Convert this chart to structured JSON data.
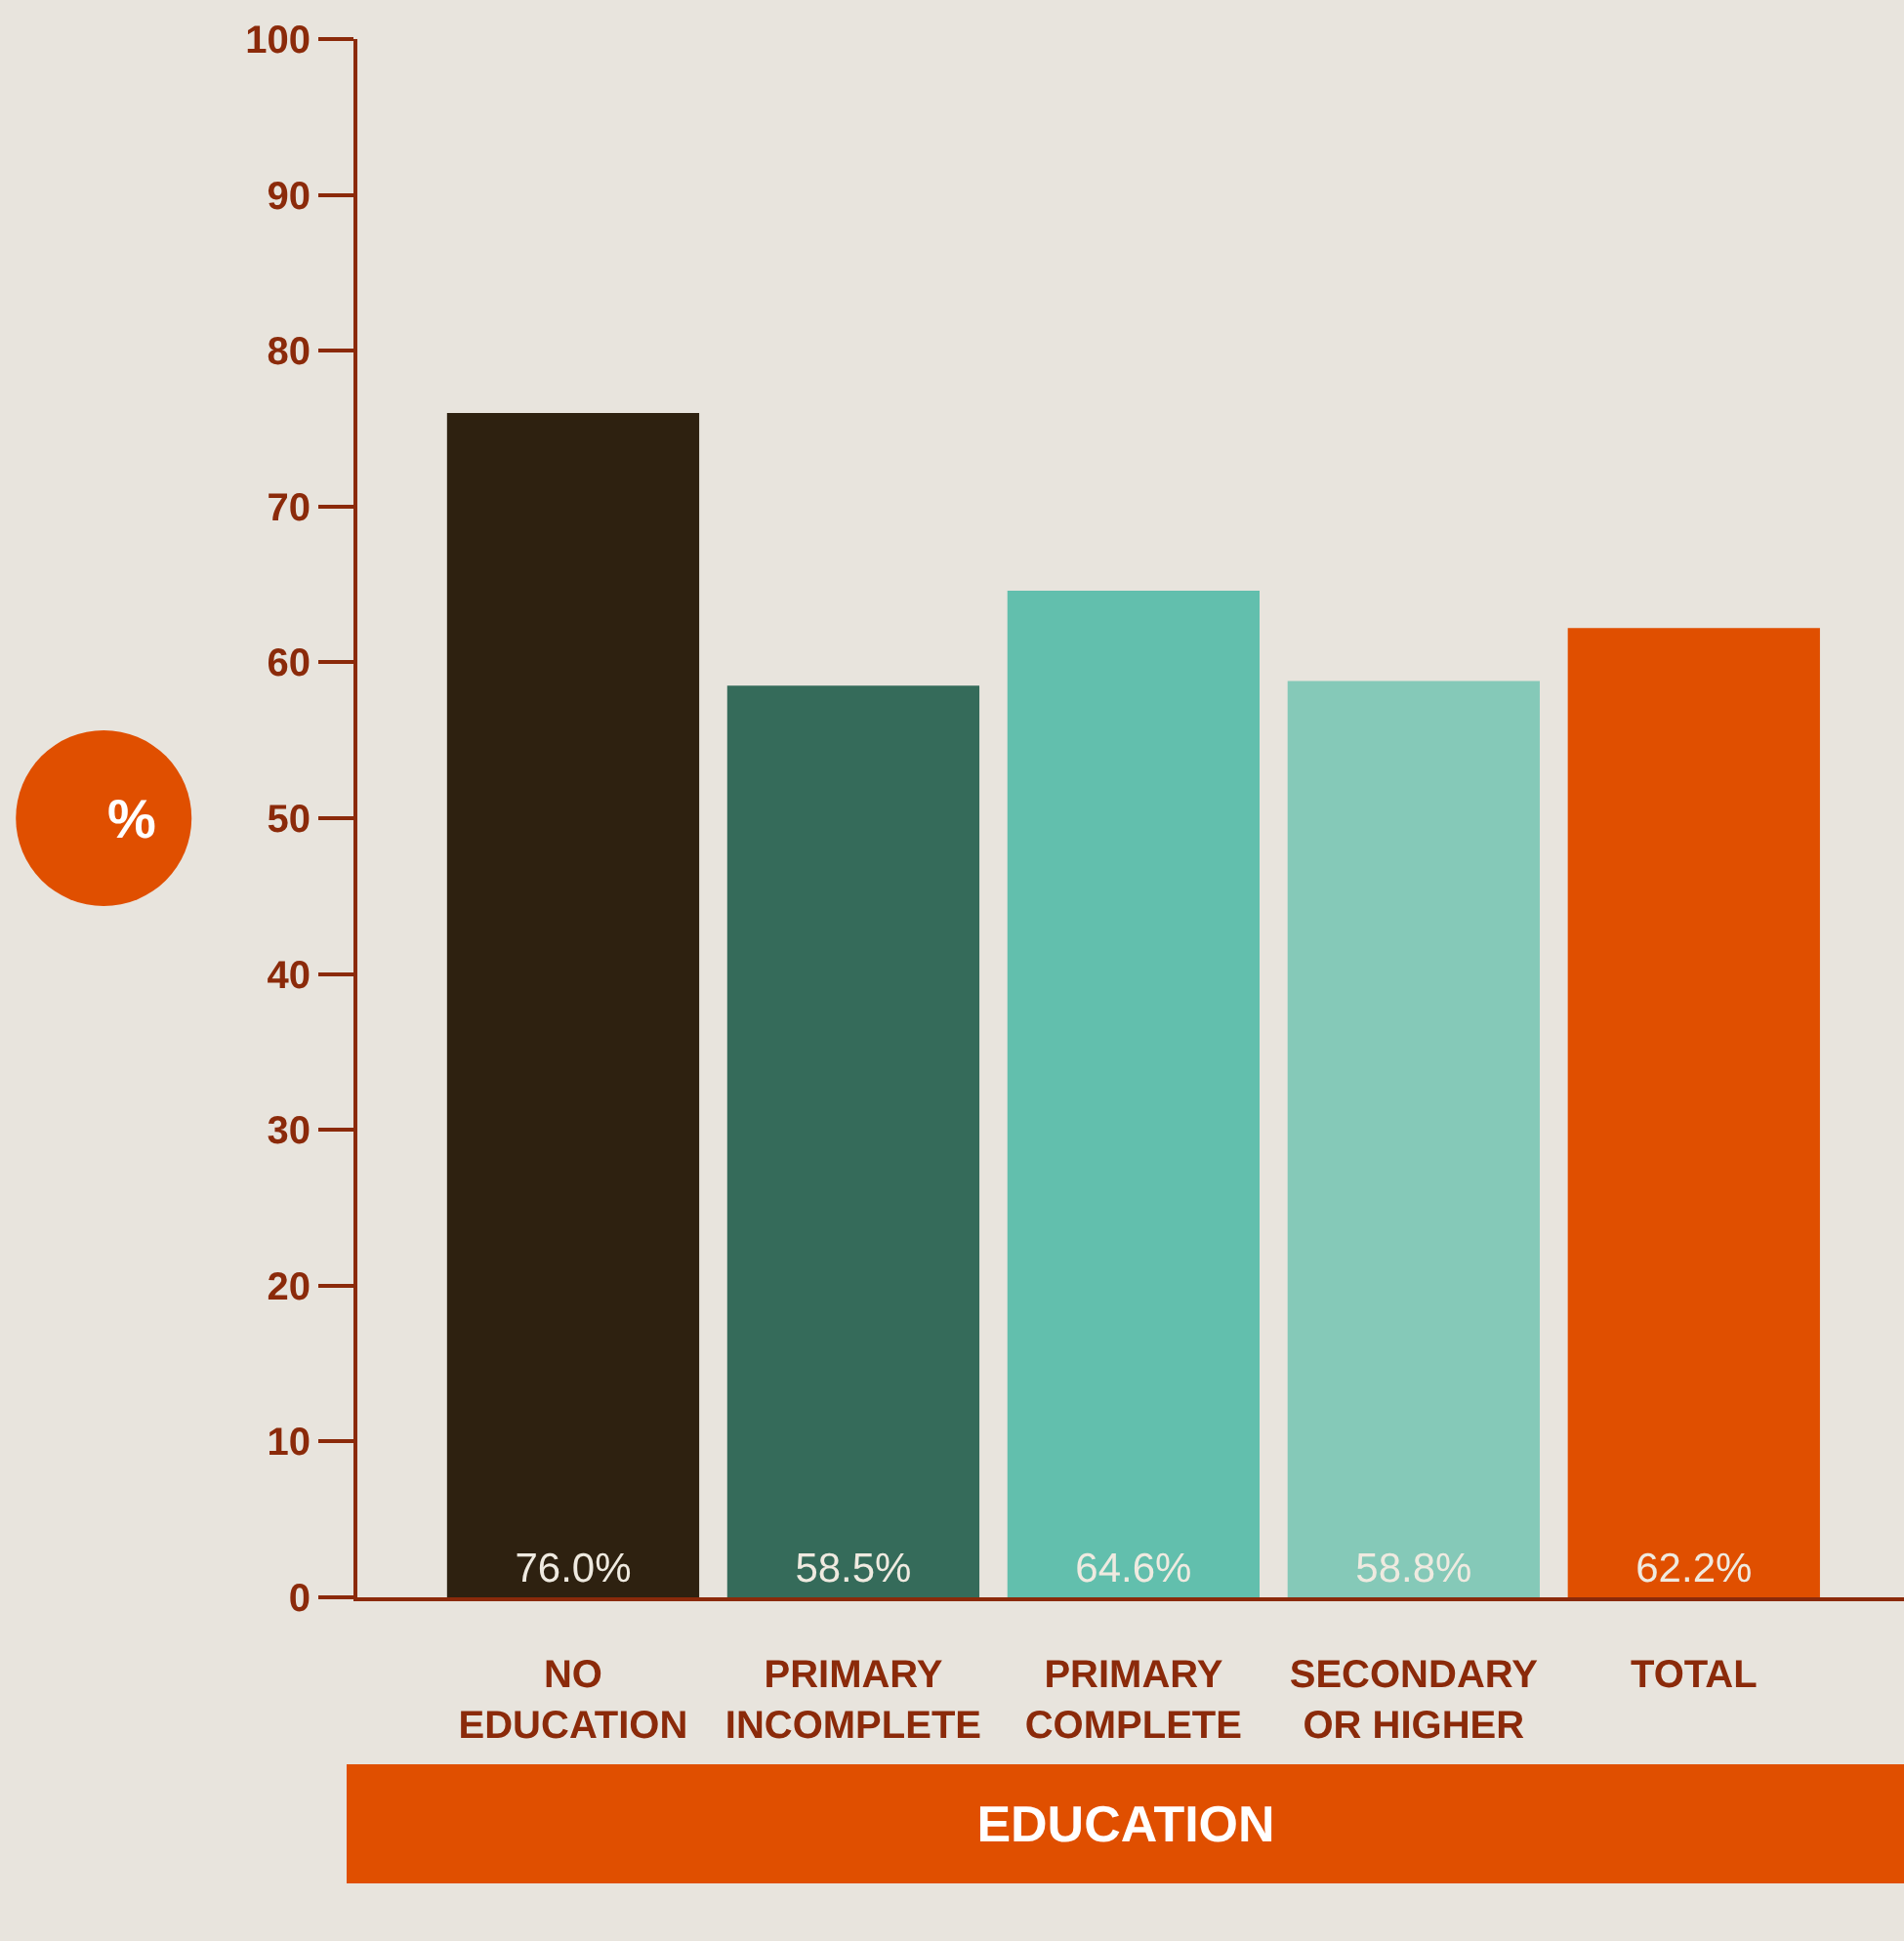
{
  "chart_data": {
    "type": "bar",
    "ylabel": "%",
    "xlabel": "EDUCATION",
    "categories": [
      "NO\nEDUCATION",
      "PRIMARY\nINCOMPLETE",
      "PRIMARY\nCOMPLETE",
      "SECONDARY\nOR HIGHER",
      "TOTAL"
    ],
    "values": [
      76.0,
      58.5,
      64.6,
      58.8,
      62.2
    ],
    "colors": [
      "#2e2110",
      "#356b5a",
      "#62bfad",
      "#85c9b8",
      "#e04f00"
    ],
    "value_labels": [
      "76.0%",
      "58.5%",
      "64.6%",
      "58.8%",
      "62.2%"
    ],
    "ylim": [
      0,
      100
    ],
    "yticks": [
      0,
      10,
      20,
      30,
      40,
      50,
      60,
      70,
      80,
      90,
      100
    ],
    "grid": false,
    "legend": false
  }
}
